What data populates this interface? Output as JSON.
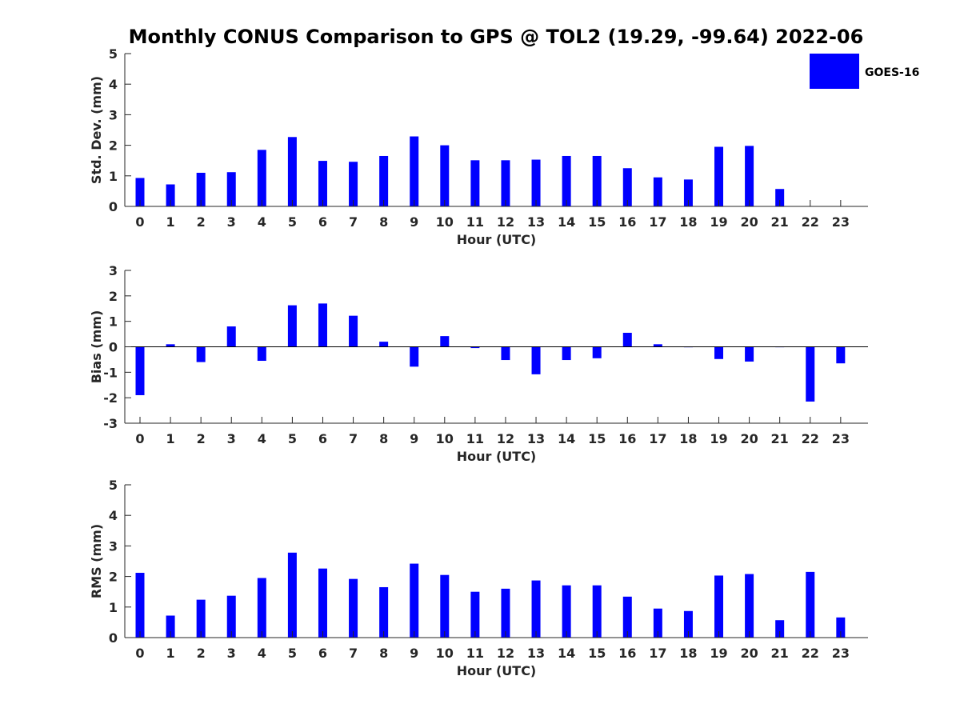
{
  "colors": {
    "bar": "#0000ff",
    "axis": "#262626",
    "background": "#ffffff"
  },
  "chart_data": [
    {
      "type": "bar",
      "title": "Monthly CONUS Comparison to GPS @ TOL2 (19.29, -99.64) 2022-06",
      "xlabel": "Hour (UTC)",
      "ylabel": "Std. Dev. (mm)",
      "ylim": [
        0,
        5
      ],
      "yticks": [
        0,
        1,
        2,
        3,
        4,
        5
      ],
      "categories": [
        "0",
        "1",
        "2",
        "3",
        "4",
        "5",
        "6",
        "7",
        "8",
        "9",
        "10",
        "11",
        "12",
        "13",
        "14",
        "15",
        "16",
        "17",
        "18",
        "19",
        "20",
        "21",
        "22",
        "23"
      ],
      "series": [
        {
          "name": "GOES-16",
          "values": [
            0.93,
            0.72,
            1.1,
            1.12,
            1.85,
            2.27,
            1.49,
            1.46,
            1.65,
            2.29,
            2.0,
            1.51,
            1.51,
            1.53,
            1.65,
            1.65,
            1.25,
            0.95,
            0.88,
            1.95,
            1.98,
            0.57,
            null,
            null
          ]
        }
      ],
      "legend": {
        "entries": [
          "GOES-16"
        ],
        "position": "top-right"
      }
    },
    {
      "type": "bar",
      "xlabel": "Hour (UTC)",
      "ylabel": "Bias (mm)",
      "ylim": [
        -3,
        3
      ],
      "yticks": [
        -3,
        -2,
        -1,
        0,
        1,
        2,
        3
      ],
      "categories": [
        "0",
        "1",
        "2",
        "3",
        "4",
        "5",
        "6",
        "7",
        "8",
        "9",
        "10",
        "11",
        "12",
        "13",
        "14",
        "15",
        "16",
        "17",
        "18",
        "19",
        "20",
        "21",
        "22",
        "23"
      ],
      "series": [
        {
          "name": "GOES-16",
          "values": [
            -1.9,
            0.1,
            -0.6,
            0.8,
            -0.55,
            1.63,
            1.7,
            1.22,
            0.2,
            -0.78,
            0.42,
            -0.05,
            -0.52,
            -1.08,
            -0.52,
            -0.45,
            0.55,
            0.1,
            -0.02,
            -0.48,
            -0.58,
            0.0,
            -2.15,
            -0.65
          ]
        }
      ]
    },
    {
      "type": "bar",
      "xlabel": "Hour (UTC)",
      "ylabel": "RMS (mm)",
      "ylim": [
        0,
        5
      ],
      "yticks": [
        0,
        1,
        2,
        3,
        4,
        5
      ],
      "categories": [
        "0",
        "1",
        "2",
        "3",
        "4",
        "5",
        "6",
        "7",
        "8",
        "9",
        "10",
        "11",
        "12",
        "13",
        "14",
        "15",
        "16",
        "17",
        "18",
        "19",
        "20",
        "21",
        "22",
        "23"
      ],
      "series": [
        {
          "name": "GOES-16",
          "values": [
            2.12,
            0.72,
            1.24,
            1.37,
            1.95,
            2.78,
            2.26,
            1.92,
            1.65,
            2.42,
            2.05,
            1.5,
            1.6,
            1.87,
            1.71,
            1.71,
            1.34,
            0.95,
            0.87,
            2.03,
            2.08,
            0.57,
            2.15,
            0.66
          ]
        }
      ]
    }
  ]
}
